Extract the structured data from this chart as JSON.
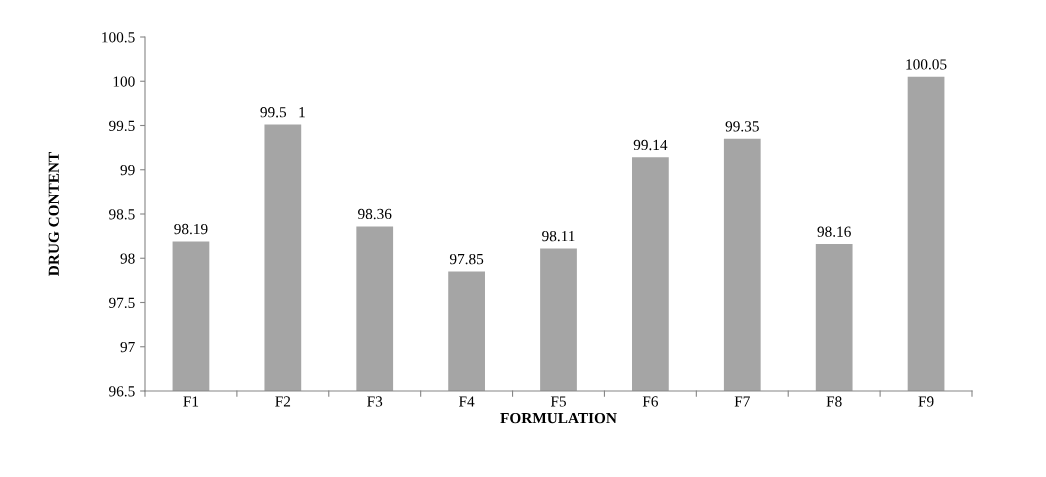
{
  "chart_data": {
    "type": "bar",
    "xlabel": "FORMULATION",
    "ylabel": "DRUG CONTENT",
    "categories": [
      "F1",
      "F2",
      "F3",
      "F4",
      "F5",
      "F6",
      "F7",
      "F8",
      "F9"
    ],
    "values": [
      98.19,
      99.51,
      98.36,
      97.85,
      98.11,
      99.14,
      99.35,
      98.16,
      100.05
    ],
    "value_labels": [
      "98.19",
      "99.5   1",
      "98.36",
      "97.85",
      "98.11",
      "99.14",
      "99.35",
      "98.16",
      "100.05"
    ],
    "color": "#a5a5a5",
    "ylim": [
      96.5,
      100.5
    ],
    "yticks": [
      96.5,
      97,
      97.5,
      98,
      98.5,
      99,
      99.5,
      100,
      100.5
    ],
    "grid": false,
    "legend": false
  }
}
